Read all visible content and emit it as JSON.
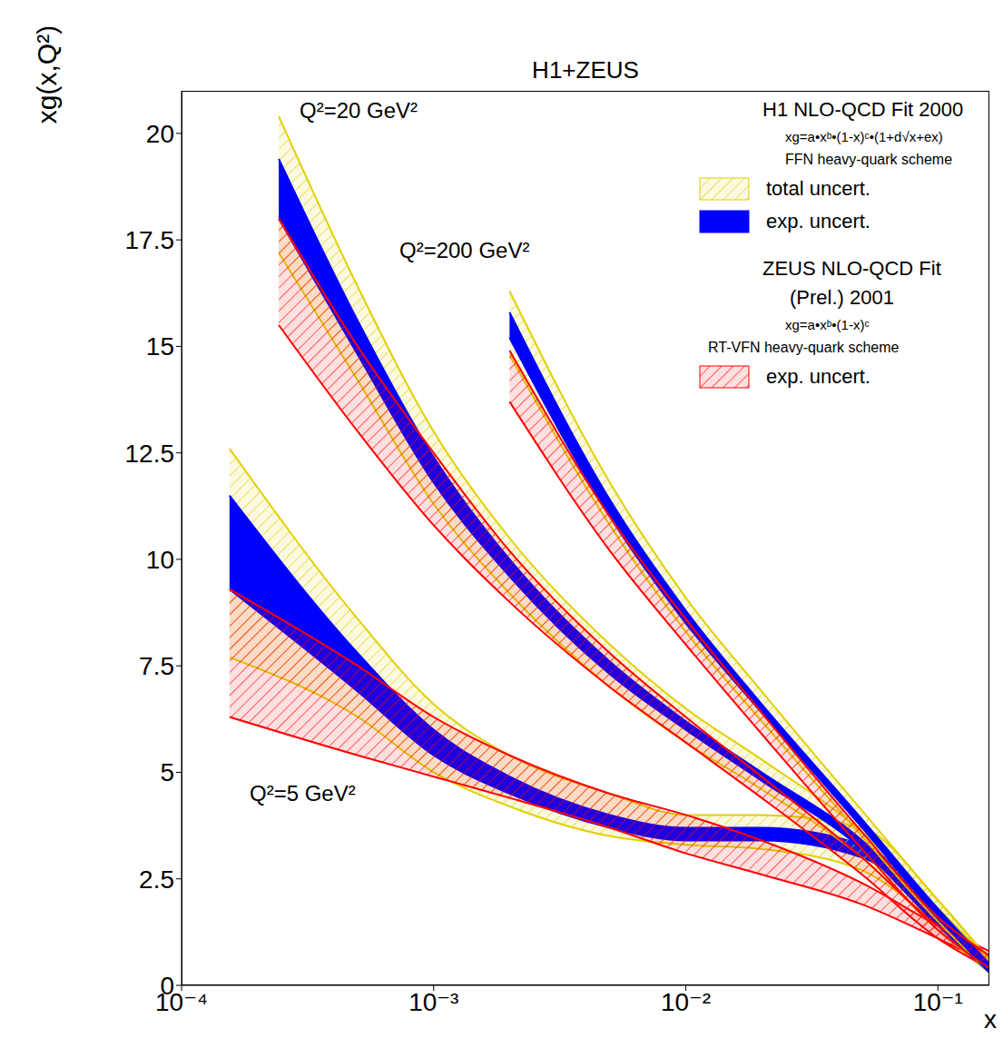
{
  "chart_data": {
    "type": "area",
    "title": "H1+ZEUS",
    "x_label": "x",
    "y_label": "xg(x,Q²)",
    "log": "x",
    "grid": false,
    "legend": "top-right",
    "xlim": [
      0.0001,
      0.16
    ],
    "xticks": [
      {
        "value": 0.0001,
        "label": "10⁻⁴"
      },
      {
        "value": 0.001,
        "label": "10⁻³"
      },
      {
        "value": 0.01,
        "label": "10⁻²"
      },
      {
        "value": 0.1,
        "label": "10⁻¹"
      }
    ],
    "ylim": [
      0,
      21
    ],
    "yticks": [
      0,
      2.5,
      5,
      7.5,
      10,
      12.5,
      15,
      17.5,
      20
    ],
    "fits": [
      {
        "title": "H1 NLO-QCD Fit 2000",
        "formula": "xg=a•xᵇ•(1-x)ᶜ•(1+d√x+ex)",
        "scheme": "FFN heavy-quark scheme",
        "series": [
          {
            "name": "total uncert.",
            "color": "#e0d000",
            "line_style": "hatched"
          },
          {
            "name": "exp. uncert.",
            "color": "#0000ff",
            "line_style": "solid"
          }
        ]
      },
      {
        "title": "ZEUS NLO-QCD Fit",
        "subtitle": "(Prel.) 2001",
        "formula": "xg=a•xᵇ•(1-x)ᶜ",
        "scheme": "RT-VFN heavy-quark scheme",
        "series": [
          {
            "name": "exp. uncert.",
            "color": "#ff0000",
            "line_style": "hatched"
          }
        ]
      }
    ],
    "bands": [
      {
        "label": "Q²=5 GeV²",
        "x": [
          0.000155,
          0.0005,
          0.001,
          0.002,
          0.005,
          0.01,
          0.02,
          0.05,
          0.1,
          0.16
        ],
        "series": [
          {
            "fit": "H1 NLO-QCD Fit 2000",
            "name": "total uncert.",
            "lower": [
              7.7,
              6.3,
              5.0,
              4.2,
              3.5,
              3.3,
              3.2,
              2.7,
              1.4,
              0.3
            ],
            "upper": [
              12.6,
              8.6,
              6.6,
              5.4,
              4.5,
              4.0,
              4.0,
              3.7,
              2.0,
              0.6
            ]
          },
          {
            "fit": "H1 NLO-QCD Fit 2000",
            "name": "exp. uncert.",
            "lower": [
              9.3,
              6.9,
              5.4,
              4.5,
              3.7,
              3.4,
              3.4,
              3.0,
              1.6,
              0.3
            ],
            "upper": [
              11.5,
              7.8,
              6.0,
              4.9,
              4.0,
              3.7,
              3.7,
              3.3,
              1.8,
              0.5
            ]
          },
          {
            "fit": "ZEUS NLO-QCD Fit",
            "name": "exp. uncert.",
            "lower": [
              6.3,
              5.4,
              4.9,
              4.4,
              3.7,
              3.1,
              2.6,
              1.9,
              1.1,
              0.5
            ],
            "upper": [
              9.3,
              7.5,
              6.3,
              5.4,
              4.5,
              4.0,
              3.4,
              2.4,
              1.4,
              0.8
            ]
          }
        ]
      },
      {
        "label": "Q²=20 GeV²",
        "x": [
          0.000243,
          0.0005,
          0.001,
          0.002,
          0.005,
          0.01,
          0.02,
          0.05,
          0.1,
          0.16
        ],
        "series": [
          {
            "fit": "H1 NLO-QCD Fit 2000",
            "name": "total uncert.",
            "lower": [
              17.2,
              14.2,
              11.3,
              9.2,
              7.0,
              5.7,
              4.6,
              3.0,
              1.3,
              0.3
            ],
            "upper": [
              20.4,
              16.4,
              13.0,
              10.5,
              8.0,
              6.5,
              5.3,
              3.6,
              1.8,
              0.6
            ]
          },
          {
            "fit": "H1 NLO-QCD Fit 2000",
            "name": "exp. uncert.",
            "lower": [
              18.0,
              14.8,
              11.8,
              9.6,
              7.3,
              6.0,
              4.8,
              3.2,
              1.4,
              0.3
            ],
            "upper": [
              19.4,
              15.6,
              12.4,
              10.0,
              7.6,
              6.2,
              5.0,
              3.4,
              1.6,
              0.5
            ]
          },
          {
            "fit": "ZEUS NLO-QCD Fit",
            "name": "exp. uncert.",
            "lower": [
              15.5,
              13.0,
              10.8,
              9.0,
              7.0,
              5.7,
              4.4,
              2.6,
              1.1,
              0.4
            ],
            "upper": [
              18.0,
              15.0,
              12.5,
              10.2,
              7.8,
              6.3,
              4.9,
              3.0,
              1.4,
              0.7
            ]
          }
        ]
      },
      {
        "label": "Q²=200 GeV²",
        "x": [
          0.002,
          0.005,
          0.01,
          0.02,
          0.05,
          0.1,
          0.16
        ],
        "series": [
          {
            "fit": "H1 NLO-QCD Fit 2000",
            "name": "total uncert.",
            "lower": [
              14.8,
              10.8,
              8.3,
              6.2,
              3.5,
              1.5,
              0.3
            ],
            "upper": [
              16.3,
              11.8,
              9.1,
              6.9,
              4.1,
              2.0,
              0.6
            ]
          },
          {
            "fit": "H1 NLO-QCD Fit 2000",
            "name": "exp. uncert.",
            "lower": [
              15.2,
              11.0,
              8.5,
              6.4,
              3.7,
              1.6,
              0.3
            ],
            "upper": [
              15.8,
              11.4,
              8.8,
              6.6,
              3.9,
              1.8,
              0.5
            ]
          },
          {
            "fit": "ZEUS NLO-QCD Fit",
            "name": "exp. uncert.",
            "lower": [
              13.7,
              10.2,
              8.0,
              5.9,
              3.2,
              1.3,
              0.4
            ],
            "upper": [
              14.9,
              11.0,
              8.6,
              6.4,
              3.6,
              1.6,
              0.7
            ]
          }
        ]
      }
    ]
  }
}
